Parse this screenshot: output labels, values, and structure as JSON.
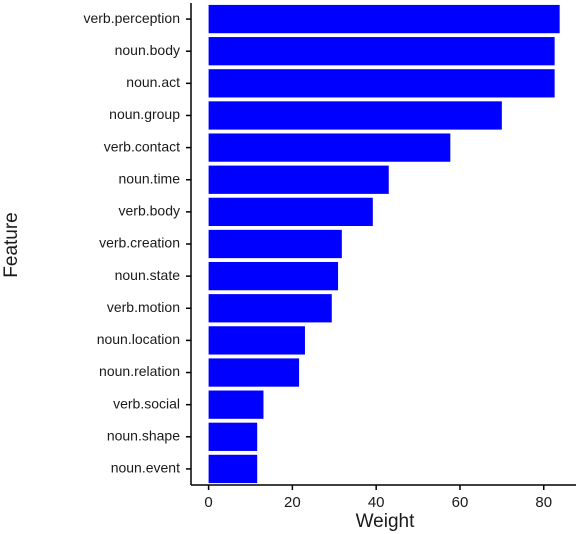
{
  "chart_data": {
    "type": "barh",
    "categories": [
      "verb.perception",
      "noun.body",
      "noun.act",
      "noun.group",
      "verb.contact",
      "noun.time",
      "verb.body",
      "verb.creation",
      "noun.state",
      "verb.motion",
      "noun.location",
      "noun.relation",
      "verb.social",
      "noun.shape",
      "noun.event"
    ],
    "values": [
      83.8,
      82.6,
      82.6,
      70.0,
      57.7,
      43.0,
      39.2,
      31.8,
      30.9,
      29.4,
      23.0,
      21.6,
      13.1,
      11.6,
      11.6
    ],
    "color": "#0000ff",
    "xlabel": "Weight",
    "ylabel": "Feature",
    "xlim": [
      -4.2,
      87.7
    ],
    "xticks": [
      0,
      20,
      40,
      60,
      80
    ]
  }
}
